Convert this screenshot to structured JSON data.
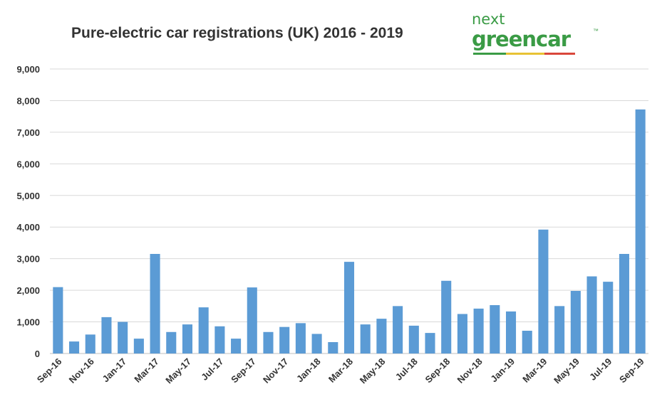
{
  "logo": {
    "line1": "next",
    "line2": "greencar",
    "tm": "™"
  },
  "chart_data": {
    "type": "bar",
    "title": "Pure-electric car registrations (UK) 2016 - 2019",
    "xlabel": "",
    "ylabel": "",
    "ylim": [
      0,
      9000
    ],
    "yticks": [
      "0",
      "1,000",
      "2,000",
      "3,000",
      "4,000",
      "5,000",
      "6,000",
      "7,000",
      "8,000",
      "9,000"
    ],
    "grid": true,
    "bar_color": "#5b9bd5",
    "categories": [
      "Sep-16",
      "Oct-16",
      "Nov-16",
      "Dec-16",
      "Jan-17",
      "Feb-17",
      "Mar-17",
      "Apr-17",
      "May-17",
      "Jun-17",
      "Jul-17",
      "Aug-17",
      "Sep-17",
      "Oct-17",
      "Nov-17",
      "Dec-17",
      "Jan-18",
      "Feb-18",
      "Mar-18",
      "Apr-18",
      "May-18",
      "Jun-18",
      "Jul-18",
      "Aug-18",
      "Sep-18",
      "Oct-18",
      "Nov-18",
      "Dec-18",
      "Jan-19",
      "Feb-19",
      "Mar-19",
      "Apr-19",
      "May-19",
      "Jun-19",
      "Jul-19",
      "Aug-19",
      "Sep-19"
    ],
    "xtick_labels": [
      "Sep-16",
      "Nov-16",
      "Jan-17",
      "Mar-17",
      "May-17",
      "Jul-17",
      "Sep-17",
      "Nov-17",
      "Jan-18",
      "Mar-18",
      "May-18",
      "Jul-18",
      "Sep-18",
      "Nov-18",
      "Jan-19",
      "Mar-19",
      "May-19",
      "Jul-19",
      "Sep-19"
    ],
    "values": [
      2100,
      380,
      600,
      1150,
      1000,
      470,
      3150,
      680,
      920,
      1460,
      860,
      470,
      2090,
      680,
      840,
      960,
      620,
      360,
      2900,
      920,
      1100,
      1500,
      880,
      650,
      2300,
      1250,
      1420,
      1530,
      1330,
      720,
      3920,
      1500,
      1980,
      2440,
      2270,
      3150,
      7720
    ]
  }
}
